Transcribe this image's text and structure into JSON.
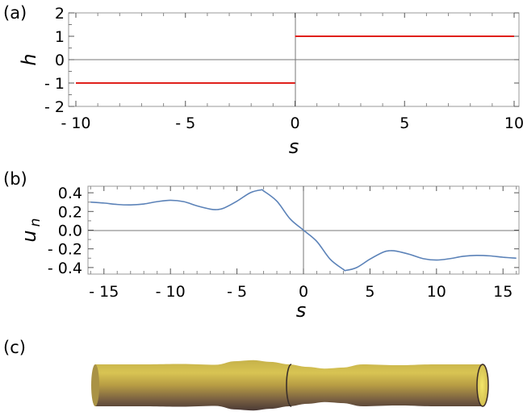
{
  "chart_data": [
    {
      "panel": "(a)",
      "type": "line",
      "xlabel": "s",
      "ylabel": "h",
      "xlim": [
        -10,
        10
      ],
      "ylim": [
        -2,
        2
      ],
      "xticks": [
        -10,
        -5,
        0,
        5,
        10
      ],
      "xtick_labels": [
        "- 10",
        "- 5",
        "0",
        "5",
        "10"
      ],
      "yticks": [
        2,
        1,
        0,
        -1,
        -2
      ],
      "ytick_labels": [
        "2",
        "1",
        "0",
        "- 1",
        "- 2"
      ],
      "series": [
        {
          "color": "#e0201b",
          "segments": [
            {
              "x": [
                -10,
                0
              ],
              "y": [
                -1,
                -1
              ]
            },
            {
              "x": [
                0,
                10
              ],
              "y": [
                1,
                1
              ]
            }
          ]
        }
      ]
    },
    {
      "panel": "(b)",
      "type": "line",
      "xlabel": "s",
      "ylabel": "u",
      "ylabel_subscript": "n",
      "xlim": [
        -16.2,
        16.2
      ],
      "ylim": [
        -0.47,
        0.47
      ],
      "xticks": [
        -15,
        -10,
        -5,
        0,
        5,
        10,
        15
      ],
      "xtick_labels": [
        "- 15",
        "- 10",
        "- 5",
        "0",
        "5",
        "10",
        "15"
      ],
      "yticks": [
        0.4,
        0.2,
        0.0,
        -0.2,
        -0.4
      ],
      "ytick_labels": [
        "0.4",
        "0.2",
        "0.0",
        "- 0.2",
        "- 0.4"
      ],
      "series": [
        {
          "color": "#5b82b8",
          "x": [
            -16,
            -15,
            -14,
            -13,
            -12,
            -11,
            -10,
            -9,
            -8,
            -7,
            -6.5,
            -6,
            -5,
            -4,
            -3.2,
            -3,
            -2,
            -1,
            0,
            1,
            2,
            3,
            3.2,
            4,
            5,
            6,
            6.5,
            7,
            8,
            9,
            10,
            11,
            12,
            13,
            14,
            15,
            16
          ],
          "y": [
            0.3,
            0.29,
            0.275,
            0.27,
            0.28,
            0.305,
            0.32,
            0.305,
            0.26,
            0.225,
            0.22,
            0.235,
            0.31,
            0.4,
            0.43,
            0.42,
            0.31,
            0.12,
            0.0,
            -0.12,
            -0.31,
            -0.42,
            -0.43,
            -0.4,
            -0.31,
            -0.235,
            -0.22,
            -0.225,
            -0.26,
            -0.305,
            -0.32,
            -0.305,
            -0.28,
            -0.27,
            -0.275,
            -0.29,
            -0.3
          ]
        }
      ]
    }
  ],
  "panel_c": {
    "label": "(c)",
    "profile_s": [
      -16,
      -12,
      -9,
      -6,
      -4.5,
      -3,
      -1.5,
      0,
      1.5,
      3,
      4.5,
      6,
      9,
      12,
      16
    ],
    "profile_radius": [
      1.0,
      1.0,
      1.02,
      0.98,
      1.15,
      1.2,
      1.12,
      1.0,
      0.88,
      0.8,
      0.85,
      1.0,
      0.96,
      1.0,
      1.0
    ],
    "colors": {
      "light": "#d8c352",
      "mid": "#b49a3d",
      "dark": "#4d3b36",
      "inner": "#efe060"
    }
  }
}
